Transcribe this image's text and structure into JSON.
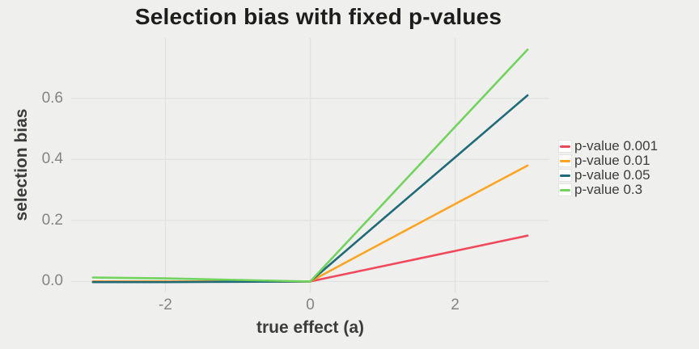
{
  "chart_data": {
    "type": "line",
    "title": "Selection bias with fixed p-values",
    "xlabel": "true effect (a)",
    "ylabel": "selection bias",
    "x": [
      -3,
      -2,
      -1,
      0,
      1,
      2,
      3
    ],
    "series": [
      {
        "name": "p-value 0.001",
        "color": "#F2485C",
        "values": [
          0.0,
          0.0,
          0.0,
          0.0,
          0.05,
          0.1,
          0.15
        ]
      },
      {
        "name": "p-value 0.01",
        "color": "#FFA41E",
        "values": [
          0.0,
          0.0,
          0.0,
          0.0,
          0.127,
          0.254,
          0.38
        ]
      },
      {
        "name": "p-value 0.05",
        "color": "#1F6B77",
        "values": [
          -0.002,
          -0.002,
          -0.001,
          0.0,
          0.204,
          0.407,
          0.61
        ]
      },
      {
        "name": "p-value 0.3",
        "color": "#72D45C",
        "values": [
          0.013,
          0.01,
          0.005,
          0.0,
          0.253,
          0.507,
          0.76
        ]
      }
    ],
    "x_ticks": [
      {
        "v": -2,
        "label": "-2"
      },
      {
        "v": 0,
        "label": "0"
      },
      {
        "v": 2,
        "label": "2"
      }
    ],
    "y_ticks": [
      {
        "v": 0.0,
        "label": "0.0"
      },
      {
        "v": 0.2,
        "label": "0.2"
      },
      {
        "v": 0.4,
        "label": "0.4"
      },
      {
        "v": 0.6,
        "label": "0.6"
      }
    ],
    "xlim": [
      -3.3,
      3.3
    ],
    "ylim": [
      -0.036,
      0.798
    ],
    "grid": true,
    "legend_position": "right",
    "background_color": "#EFEFEE",
    "gridline_color": "#E2E2E1"
  }
}
